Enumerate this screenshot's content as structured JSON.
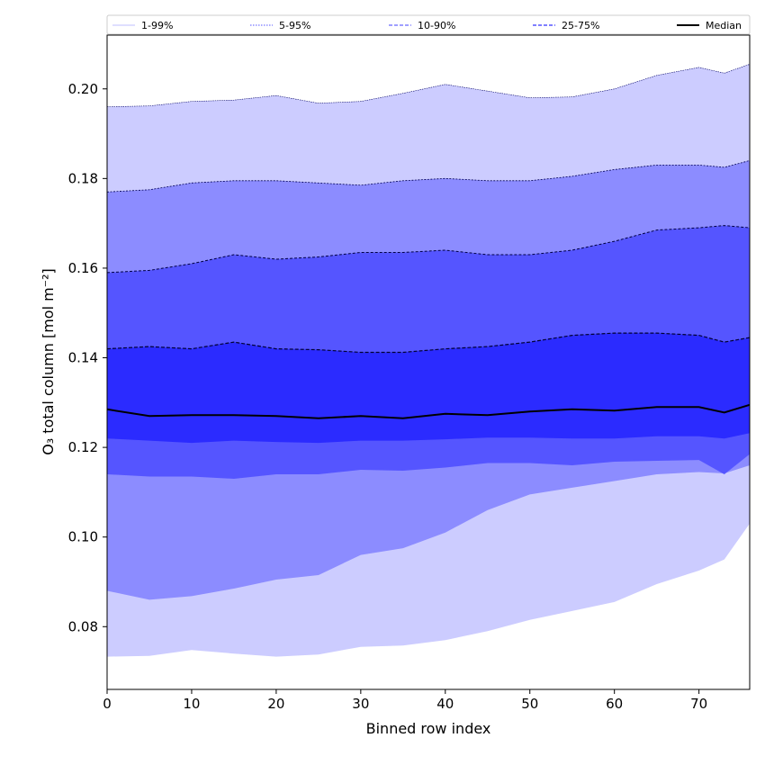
{
  "chart_data": {
    "type": "area",
    "xlabel": "Binned row index",
    "ylabel": "O₃ total column [mol m⁻²]",
    "xlim": [
      0,
      76
    ],
    "ylim": [
      0.066,
      0.212
    ],
    "xticks": [
      0,
      10,
      20,
      30,
      40,
      50,
      60,
      70
    ],
    "yticks": [
      0.08,
      0.1,
      0.12,
      0.14,
      0.16,
      0.18,
      0.2
    ],
    "ytick_labels": [
      "0.08",
      "0.10",
      "0.12",
      "0.14",
      "0.16",
      "0.18",
      "0.20"
    ],
    "x": [
      0,
      5,
      10,
      15,
      20,
      25,
      30,
      35,
      40,
      45,
      50,
      55,
      60,
      65,
      70,
      73,
      76
    ],
    "p1": [
      0.0733,
      0.0735,
      0.0748,
      0.074,
      0.0733,
      0.0738,
      0.0755,
      0.0758,
      0.077,
      0.079,
      0.0815,
      0.0835,
      0.0855,
      0.0895,
      0.0925,
      0.095,
      0.103
    ],
    "p5": [
      0.088,
      0.086,
      0.0868,
      0.0885,
      0.0905,
      0.0915,
      0.096,
      0.0975,
      0.101,
      0.106,
      0.1095,
      0.111,
      0.1125,
      0.114,
      0.1145,
      0.1142,
      0.116
    ],
    "p10": [
      0.114,
      0.1135,
      0.1135,
      0.113,
      0.114,
      0.114,
      0.115,
      0.1148,
      0.1155,
      0.1165,
      0.1165,
      0.116,
      0.1168,
      0.117,
      0.1172,
      0.114,
      0.1185
    ],
    "p25": [
      0.122,
      0.1215,
      0.121,
      0.1215,
      0.1212,
      0.121,
      0.1215,
      0.1215,
      0.1218,
      0.1222,
      0.1222,
      0.122,
      0.122,
      0.1225,
      0.1225,
      0.122,
      0.1232
    ],
    "median": [
      0.1285,
      0.127,
      0.1272,
      0.1272,
      0.127,
      0.1265,
      0.127,
      0.1265,
      0.1275,
      0.1272,
      0.128,
      0.1285,
      0.1282,
      0.129,
      0.129,
      0.1278,
      0.1295
    ],
    "p75": [
      0.142,
      0.1425,
      0.142,
      0.1435,
      0.142,
      0.1418,
      0.1412,
      0.1412,
      0.142,
      0.1425,
      0.1435,
      0.145,
      0.1455,
      0.1455,
      0.145,
      0.1435,
      0.1445
    ],
    "p90": [
      0.159,
      0.1595,
      0.161,
      0.163,
      0.162,
      0.1625,
      0.1635,
      0.1635,
      0.164,
      0.163,
      0.163,
      0.164,
      0.166,
      0.1685,
      0.169,
      0.1695,
      0.169
    ],
    "p95": [
      0.177,
      0.1775,
      0.179,
      0.1795,
      0.1795,
      0.179,
      0.1785,
      0.1795,
      0.18,
      0.1795,
      0.1795,
      0.1805,
      0.182,
      0.183,
      0.183,
      0.1825,
      0.184
    ],
    "p99": [
      0.196,
      0.1962,
      0.1972,
      0.1975,
      0.1985,
      0.1968,
      0.1972,
      0.199,
      0.201,
      0.1995,
      0.198,
      0.1982,
      0.2,
      0.203,
      0.2048,
      0.2035,
      0.2055
    ],
    "legend": {
      "placement": "top",
      "entries": [
        {
          "label": "1-99%",
          "color": "#ccccff",
          "dash": "solid"
        },
        {
          "label": "5-95%",
          "color": "#7777ff",
          "dash": "dotted"
        },
        {
          "label": "10-90%",
          "color": "#6666ff",
          "dash": "dashed"
        },
        {
          "label": "25-75%",
          "color": "#3333ff",
          "dash": "dashed"
        },
        {
          "label": "Median",
          "color": "#000000",
          "dash": "solid"
        }
      ]
    },
    "colors": {
      "band_1_99": "#ccccff",
      "band_5_95": "#8c8cff",
      "band_10_90": "#5555ff",
      "band_25_75": "#2b2bff",
      "median": "#000000",
      "edge_p99": "#000066",
      "edge_p95": "#000055",
      "edge_p90": "#000044",
      "edge_p75": "#000033"
    }
  }
}
